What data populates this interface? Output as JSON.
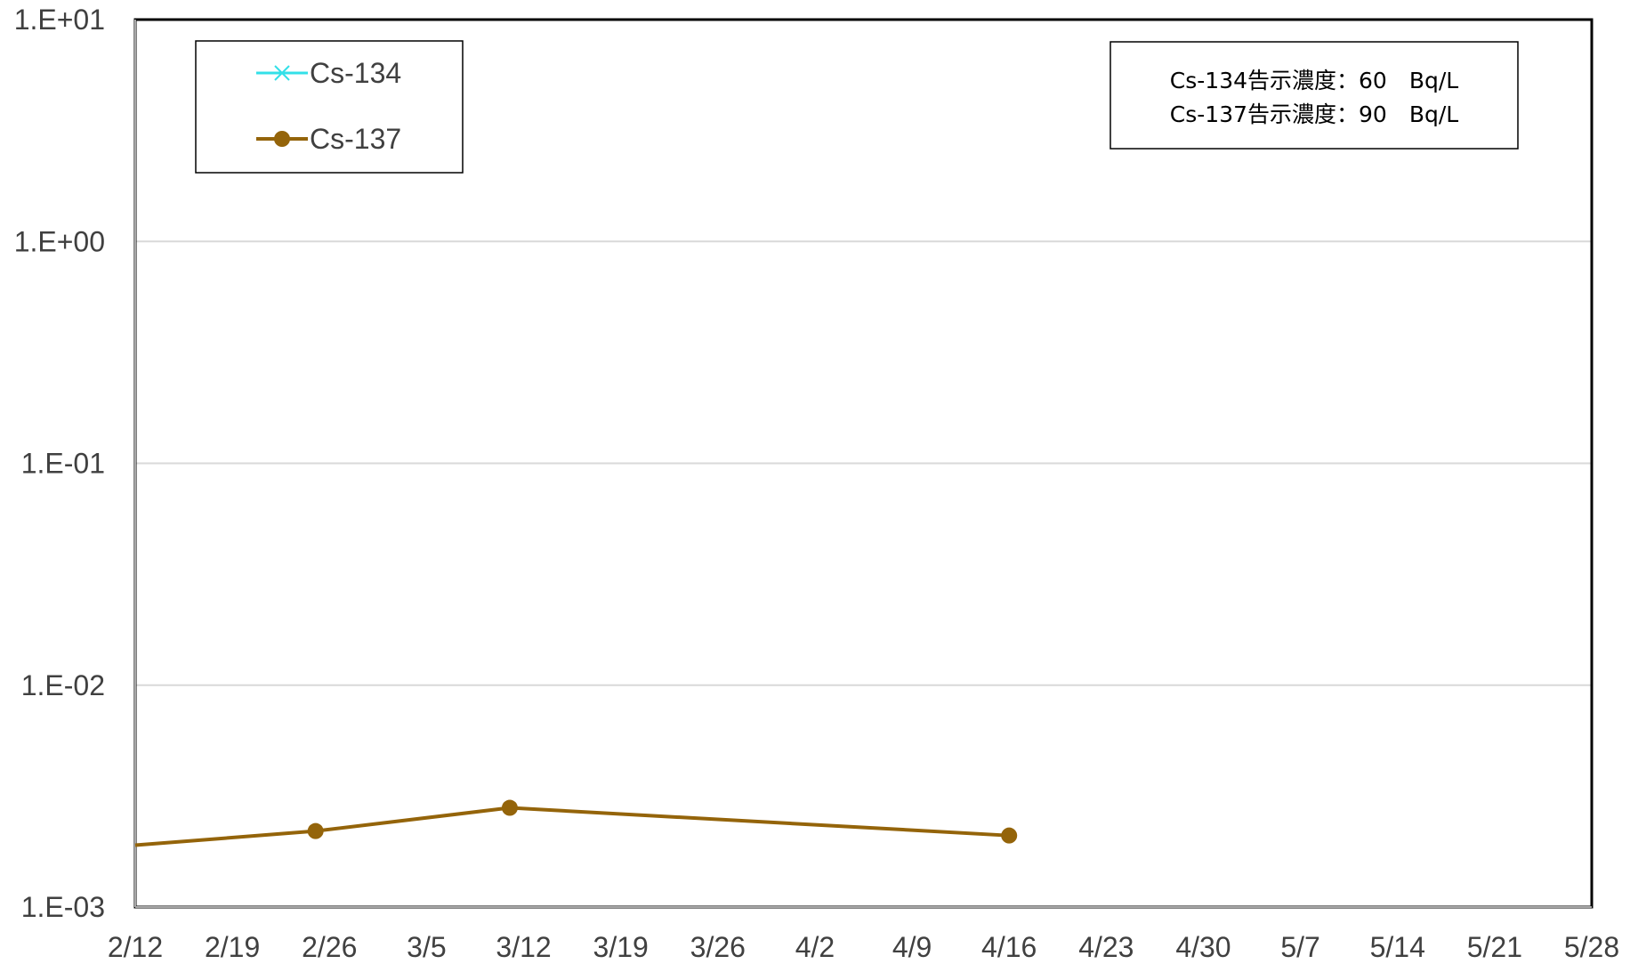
{
  "chart_data": {
    "type": "line",
    "x_axis": {
      "tick_labels": [
        "2/12",
        "2/19",
        "2/26",
        "3/5",
        "3/12",
        "3/19",
        "3/26",
        "4/2",
        "4/9",
        "4/16",
        "4/23",
        "4/30",
        "5/7",
        "5/14",
        "5/21",
        "5/28"
      ],
      "range": [
        "2/12",
        "5/28"
      ]
    },
    "y_axis": {
      "scale": "log",
      "range": [
        0.001,
        10
      ],
      "tick_values": [
        0.001,
        0.01,
        0.1,
        1,
        10
      ],
      "tick_labels": [
        "1.E-03",
        "1.E-02",
        "1.E-01",
        "1.E+00",
        "1.E+01"
      ]
    },
    "grid": "horizontal",
    "legend_position": "top-left",
    "series": [
      {
        "name": "Cs-134",
        "color": "#33e0e8",
        "marker": "x",
        "points": []
      },
      {
        "name": "Cs-137",
        "color": "#94640a",
        "marker": "circle",
        "points": [
          {
            "x": "2/12",
            "y": 0.0019
          },
          {
            "x": "2/25",
            "y": 0.0022
          },
          {
            "x": "3/11",
            "y": 0.0028
          },
          {
            "x": "4/16",
            "y": 0.0021
          }
        ]
      }
    ],
    "annotation": {
      "lines": [
        "Cs-134告示濃度：60　Bq/L",
        "Cs-137告示濃度：90　Bq/L"
      ]
    }
  }
}
